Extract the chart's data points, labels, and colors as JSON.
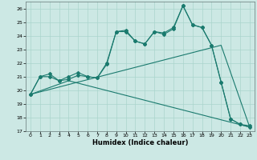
{
  "xlabel": "Humidex (Indice chaleur)",
  "bg_color": "#cce8e4",
  "line_color": "#1a7a6e",
  "grid_color": "#aad4cc",
  "xlim": [
    -0.5,
    23.5
  ],
  "ylim": [
    17,
    26.5
  ],
  "yticks": [
    17,
    18,
    19,
    20,
    21,
    22,
    23,
    24,
    25,
    26
  ],
  "xticks": [
    0,
    1,
    2,
    3,
    4,
    5,
    6,
    7,
    8,
    9,
    10,
    11,
    12,
    13,
    14,
    15,
    16,
    17,
    18,
    19,
    20,
    21,
    22,
    23
  ],
  "line1_x": [
    0,
    1,
    2,
    3,
    4,
    5,
    6,
    7,
    8,
    9,
    10,
    11,
    12,
    13,
    14,
    15,
    16,
    17,
    18,
    19,
    20,
    21,
    22,
    23
  ],
  "line1_y": [
    19.7,
    21.0,
    21.0,
    20.7,
    20.8,
    21.1,
    21.0,
    20.9,
    21.9,
    24.3,
    24.3,
    23.6,
    23.4,
    24.3,
    24.1,
    24.5,
    26.2,
    24.8,
    24.6,
    23.3,
    20.6,
    17.9,
    17.5,
    17.3
  ],
  "line2_x": [
    0,
    1,
    2,
    3,
    4,
    5,
    6,
    7,
    8,
    9,
    10,
    11,
    12,
    13,
    14,
    15,
    16,
    17,
    18,
    19,
    20,
    21,
    22,
    23
  ],
  "line2_y": [
    19.7,
    21.0,
    21.2,
    20.7,
    21.0,
    21.3,
    21.0,
    20.9,
    22.0,
    24.3,
    24.4,
    23.6,
    23.4,
    24.3,
    24.2,
    24.6,
    26.2,
    24.8,
    24.6,
    23.3,
    20.6,
    17.9,
    17.5,
    17.4
  ],
  "line3_x": [
    0,
    4,
    23
  ],
  "line3_y": [
    19.7,
    20.7,
    17.3
  ],
  "line4_x": [
    0,
    20,
    23
  ],
  "line4_y": [
    19.7,
    23.3,
    17.3
  ]
}
